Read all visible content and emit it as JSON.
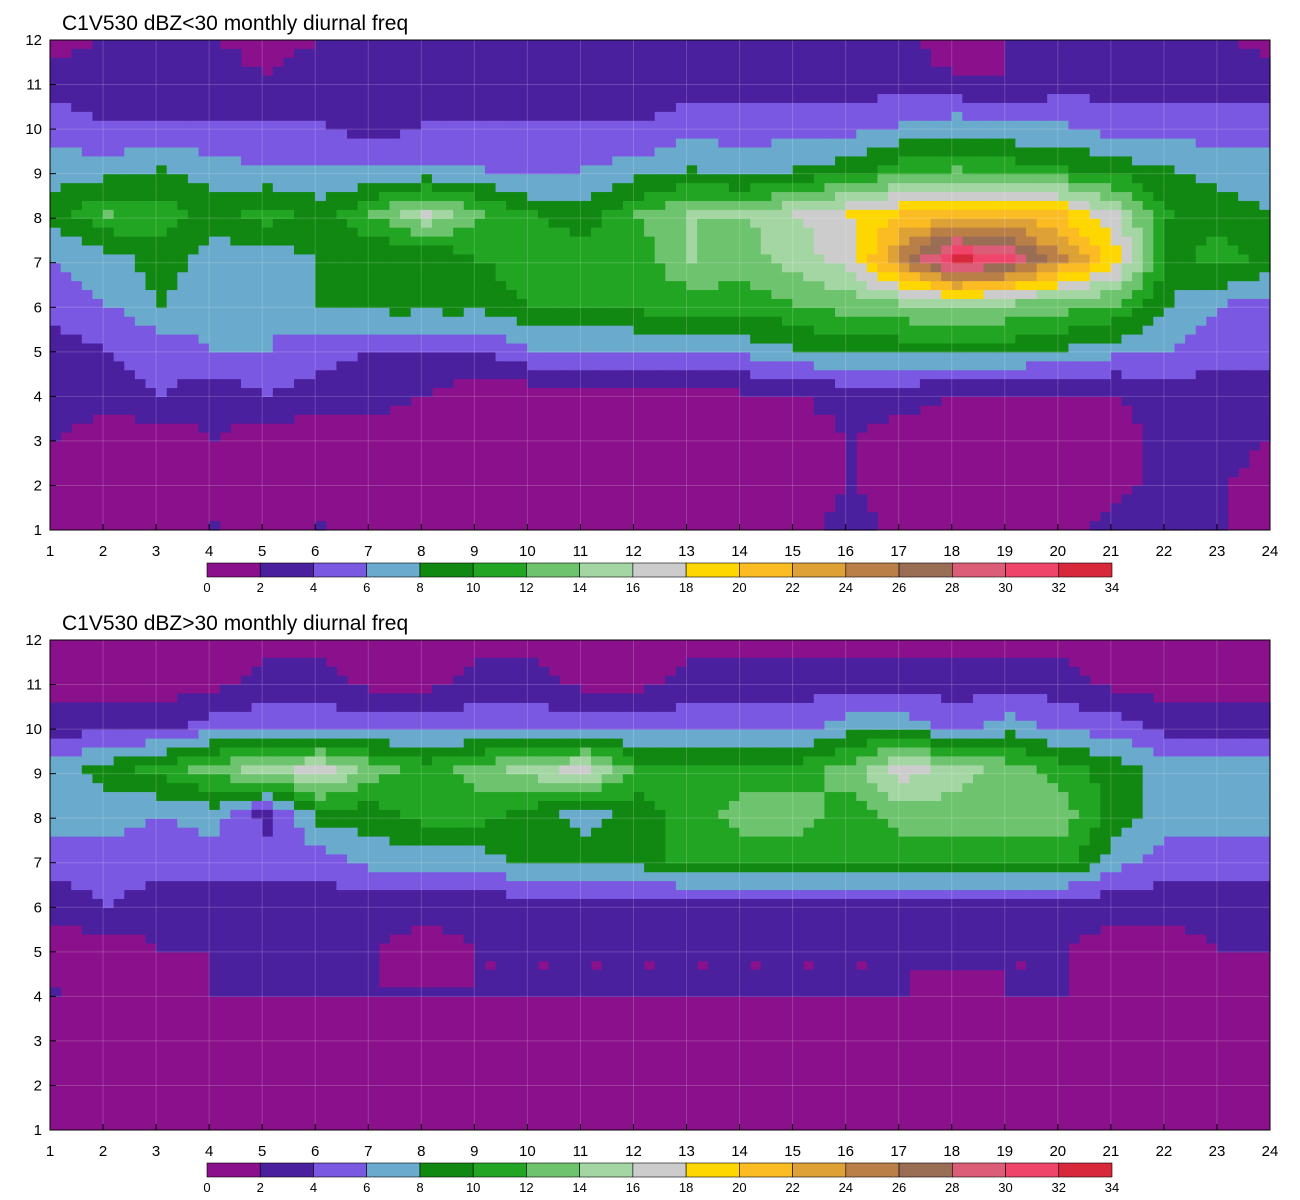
{
  "chart_data": [
    {
      "type": "heatmap",
      "title": "C1V530 dBZ<30 monthly diurnal freq",
      "xlim": [
        1,
        24
      ],
      "ylim": [
        1,
        12
      ],
      "x_ticks": [
        1,
        2,
        3,
        4,
        5,
        6,
        7,
        8,
        9,
        10,
        11,
        12,
        13,
        14,
        15,
        16,
        17,
        18,
        19,
        20,
        21,
        22,
        23,
        24
      ],
      "y_ticks": [
        1,
        2,
        3,
        4,
        5,
        6,
        7,
        8,
        9,
        10,
        11,
        12
      ],
      "grid": true,
      "colorbar_levels": [
        0,
        2,
        4,
        6,
        8,
        10,
        12,
        14,
        16,
        18,
        20,
        22,
        24,
        26,
        28,
        30,
        32,
        34
      ],
      "colorbar_colors": [
        "#8b108b",
        "#4b209f",
        "#7a58e2",
        "#6aaacd",
        "#118811",
        "#22a522",
        "#6ec46e",
        "#a4d6a4",
        "#cccccc",
        "#ffd700",
        "#fbbb23",
        "#dda135",
        "#b97f47",
        "#9a6d55",
        "#dc5d77",
        "#f0456a",
        "#d7283c"
      ],
      "x": [
        1,
        2,
        3,
        4,
        5,
        6,
        7,
        8,
        9,
        10,
        11,
        12,
        13,
        14,
        15,
        16,
        17,
        18,
        19,
        20,
        21,
        22,
        23,
        24
      ],
      "y": [
        1,
        2,
        3,
        4,
        5,
        6,
        7,
        8,
        9,
        10,
        11,
        12
      ],
      "z": [
        [
          1,
          1,
          1,
          2,
          1,
          2,
          1,
          1,
          1,
          1,
          1,
          1,
          1,
          1,
          1,
          3,
          1,
          1,
          1,
          1,
          3,
          3,
          2,
          1
        ],
        [
          1,
          1,
          1,
          1,
          1,
          1,
          1,
          1,
          1,
          1,
          1,
          1,
          1,
          1,
          1,
          2,
          1,
          1,
          1,
          1,
          1,
          3,
          2,
          1
        ],
        [
          2,
          1,
          1,
          2,
          1,
          1,
          1,
          1,
          1,
          1,
          1,
          1,
          1,
          1,
          1,
          2,
          1,
          1,
          1,
          1,
          1,
          3,
          3,
          2
        ],
        [
          3,
          3,
          4,
          3,
          4,
          3,
          3,
          2,
          1,
          1,
          1,
          1,
          1,
          2,
          2,
          3,
          3,
          2,
          2,
          2,
          2,
          3,
          3,
          3
        ],
        [
          3,
          4,
          5,
          6,
          6,
          5,
          4,
          4,
          4,
          6,
          6,
          6,
          7,
          7,
          8,
          9,
          9,
          9,
          9,
          8,
          7,
          6,
          5,
          5
        ],
        [
          5,
          6,
          8,
          7,
          6,
          8,
          9,
          9,
          9,
          10,
          10,
          11,
          11,
          11,
          12,
          13,
          14,
          15,
          14,
          13,
          12,
          8,
          6,
          5
        ],
        [
          6,
          7,
          9,
          7,
          7,
          8,
          8,
          8,
          10,
          11,
          11,
          11,
          14,
          13,
          15,
          17,
          25,
          33,
          30,
          24,
          19,
          9,
          11,
          9
        ],
        [
          9,
          12,
          11,
          9,
          11,
          9,
          12,
          16,
          12,
          10,
          9,
          12,
          14,
          14,
          16,
          18,
          20,
          21,
          21,
          20,
          16,
          10,
          9,
          8
        ],
        [
          7,
          7,
          8,
          7,
          6,
          6,
          6,
          6,
          6,
          5,
          6,
          7,
          8,
          7,
          8,
          9,
          11,
          12,
          11,
          10,
          9,
          8,
          7,
          7
        ],
        [
          5,
          4,
          4,
          4,
          4,
          4,
          3,
          4,
          4,
          4,
          4,
          4,
          5,
          5,
          5,
          5,
          6,
          7,
          6,
          6,
          5,
          5,
          5,
          5
        ],
        [
          3,
          3,
          3,
          3,
          2,
          3,
          3,
          3,
          3,
          3,
          3,
          3,
          3,
          3,
          3,
          3,
          3,
          2,
          2,
          3,
          3,
          3,
          3,
          3
        ],
        [
          1,
          2,
          2,
          2,
          1,
          2,
          2,
          2,
          2,
          2,
          2,
          2,
          2,
          2,
          2,
          2,
          2,
          1,
          2,
          2,
          2,
          2,
          2,
          1
        ]
      ]
    },
    {
      "type": "heatmap",
      "title": "C1V530 dBZ>30 monthly diurnal freq",
      "xlim": [
        1,
        24
      ],
      "ylim": [
        1,
        12
      ],
      "x_ticks": [
        1,
        2,
        3,
        4,
        5,
        6,
        7,
        8,
        9,
        10,
        11,
        12,
        13,
        14,
        15,
        16,
        17,
        18,
        19,
        20,
        21,
        22,
        23,
        24
      ],
      "y_ticks": [
        1,
        2,
        3,
        4,
        5,
        6,
        7,
        8,
        9,
        10,
        11,
        12
      ],
      "grid": true,
      "colorbar_levels": [
        0,
        2,
        4,
        6,
        8,
        10,
        12,
        14,
        16,
        18,
        20,
        22,
        24,
        26,
        28,
        30,
        32,
        34
      ],
      "colorbar_colors": [
        "#8b108b",
        "#4b209f",
        "#7a58e2",
        "#6aaacd",
        "#118811",
        "#22a522",
        "#6ec46e",
        "#a4d6a4",
        "#cccccc",
        "#ffd700",
        "#fbbb23",
        "#dda135",
        "#b97f47",
        "#9a6d55",
        "#dc5d77",
        "#f0456a",
        "#d7283c"
      ],
      "x": [
        1,
        2,
        3,
        4,
        5,
        6,
        7,
        8,
        9,
        10,
        11,
        12,
        13,
        14,
        15,
        16,
        17,
        18,
        19,
        20,
        21,
        22,
        23,
        24
      ],
      "y": [
        1,
        2,
        3,
        4,
        5,
        6,
        7,
        8,
        9,
        10,
        11,
        12
      ],
      "z": [
        [
          1,
          1,
          1,
          1,
          1,
          1,
          1,
          1,
          1,
          1,
          1,
          1,
          1,
          1,
          1,
          1,
          1,
          1,
          1,
          1,
          1,
          1,
          1,
          1
        ],
        [
          1,
          1,
          1,
          1,
          1,
          1,
          1,
          1,
          1,
          1,
          1,
          1,
          1,
          1,
          1,
          1,
          1,
          1,
          1,
          1,
          1,
          1,
          1,
          1
        ],
        [
          1,
          1,
          1,
          1,
          1,
          1,
          1,
          1,
          1,
          1,
          1,
          1,
          1,
          1,
          1,
          1,
          1,
          1,
          1,
          1,
          1,
          1,
          1,
          1
        ],
        [
          2,
          1,
          1,
          2,
          2,
          2,
          2,
          2,
          2,
          2,
          2,
          2,
          2,
          2,
          2,
          2,
          2,
          1,
          2,
          2,
          1,
          1,
          1,
          1
        ],
        [
          1,
          1,
          2,
          2,
          2,
          2,
          2,
          1,
          2,
          2,
          2,
          2,
          2,
          2,
          2,
          2,
          2,
          3,
          2,
          2,
          1,
          1,
          2,
          2
        ],
        [
          3,
          4,
          3,
          3,
          3,
          3,
          3,
          3,
          3,
          3,
          3,
          3,
          3,
          3,
          3,
          3,
          3,
          3,
          3,
          3,
          3,
          3,
          3,
          3
        ],
        [
          5,
          5,
          5,
          5,
          5,
          5,
          7,
          7,
          7,
          9,
          9,
          9,
          11,
          11,
          11,
          11,
          11,
          11,
          11,
          11,
          7,
          5,
          5,
          5
        ],
        [
          7,
          7,
          6,
          7,
          3,
          9,
          9,
          11,
          11,
          9,
          7,
          9,
          11,
          13,
          13,
          11,
          13,
          13,
          13,
          13,
          9,
          7,
          7,
          7
        ],
        [
          7,
          9,
          11,
          13,
          15,
          17,
          13,
          11,
          13,
          15,
          17,
          11,
          11,
          11,
          11,
          13,
          17,
          15,
          13,
          11,
          9,
          7,
          7,
          7
        ],
        [
          3,
          3,
          3,
          5,
          5,
          5,
          5,
          5,
          5,
          5,
          5,
          5,
          5,
          5,
          5,
          7,
          7,
          5,
          7,
          5,
          5,
          3,
          3,
          3
        ],
        [
          1,
          1,
          1,
          1,
          3,
          3,
          1,
          1,
          3,
          3,
          1,
          1,
          3,
          3,
          3,
          3,
          3,
          3,
          3,
          3,
          1,
          1,
          1,
          1
        ],
        [
          1,
          1,
          1,
          1,
          1,
          1,
          1,
          1,
          1,
          1,
          1,
          1,
          1,
          1,
          1,
          1,
          1,
          1,
          1,
          1,
          1,
          1,
          1,
          1
        ]
      ]
    }
  ]
}
